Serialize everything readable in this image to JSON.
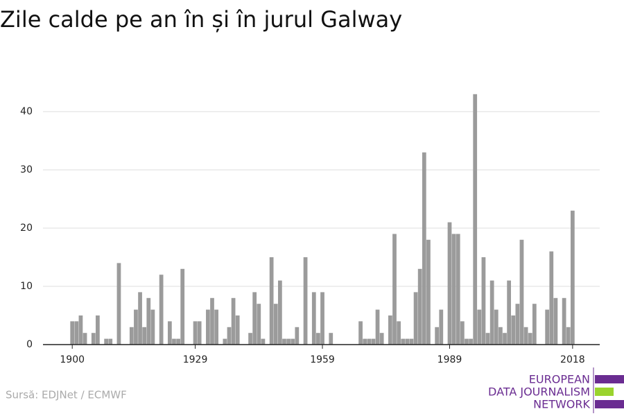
{
  "chart_data": {
    "type": "bar",
    "title": "Zile calde pe an în și în jurul Galway",
    "source": "Sursă: EDJNet / ECMWF",
    "logo": [
      "EUROPEAN",
      "DATA JOURNALISM",
      "NETWORK"
    ],
    "color": "#9b9b9b",
    "x": [
      1900,
      1901,
      1902,
      1903,
      1904,
      1905,
      1906,
      1907,
      1908,
      1909,
      1910,
      1911,
      1912,
      1913,
      1914,
      1915,
      1916,
      1917,
      1918,
      1919,
      1920,
      1921,
      1922,
      1923,
      1924,
      1925,
      1926,
      1927,
      1928,
      1929,
      1930,
      1931,
      1932,
      1933,
      1934,
      1935,
      1936,
      1937,
      1938,
      1939,
      1940,
      1941,
      1942,
      1943,
      1944,
      1945,
      1946,
      1947,
      1948,
      1949,
      1950,
      1951,
      1952,
      1953,
      1954,
      1955,
      1956,
      1957,
      1958,
      1959,
      1960,
      1961,
      1962,
      1963,
      1964,
      1965,
      1966,
      1967,
      1968,
      1969,
      1970,
      1971,
      1972,
      1973,
      1974,
      1975,
      1976,
      1977,
      1978,
      1979,
      1980,
      1981,
      1982,
      1983,
      1984,
      1985,
      1986,
      1987,
      1988,
      1989,
      1990,
      1991,
      1992,
      1993,
      1994,
      1995,
      1996,
      1997,
      1998,
      1999,
      2000,
      2001,
      2002,
      2003,
      2004,
      2005,
      2006,
      2007,
      2008,
      2009,
      2010,
      2011,
      2012,
      2013,
      2014,
      2015,
      2016,
      2017,
      2018
    ],
    "values": [
      4,
      4,
      5,
      2,
      0,
      2,
      5,
      0,
      1,
      1,
      0,
      14,
      0,
      0,
      3,
      6,
      9,
      3,
      8,
      6,
      0,
      12,
      0,
      4,
      1,
      1,
      13,
      0,
      0,
      4,
      4,
      0,
      6,
      8,
      6,
      0,
      1,
      3,
      8,
      5,
      0,
      0,
      2,
      9,
      7,
      1,
      0,
      15,
      7,
      11,
      1,
      1,
      1,
      3,
      0,
      15,
      0,
      9,
      2,
      9,
      0,
      2,
      0,
      0,
      0,
      0,
      0,
      0,
      4,
      1,
      1,
      1,
      6,
      2,
      0,
      5,
      19,
      4,
      1,
      1,
      1,
      9,
      13,
      33,
      18,
      0,
      3,
      6,
      0,
      21,
      19,
      19,
      4,
      1,
      1,
      43,
      6,
      15,
      2,
      11,
      6,
      3,
      2,
      11,
      5,
      7,
      18,
      3,
      2,
      7,
      0,
      0,
      6,
      16,
      8,
      0,
      8,
      3,
      23
    ],
    "xlim": [
      1893.1,
      2024.4
    ],
    "xticks": [
      1900,
      1929,
      1959,
      1989,
      2018
    ],
    "ylim": [
      0,
      45
    ],
    "yticks": [
      0,
      10,
      20,
      30,
      40
    ],
    "grid": true
  }
}
